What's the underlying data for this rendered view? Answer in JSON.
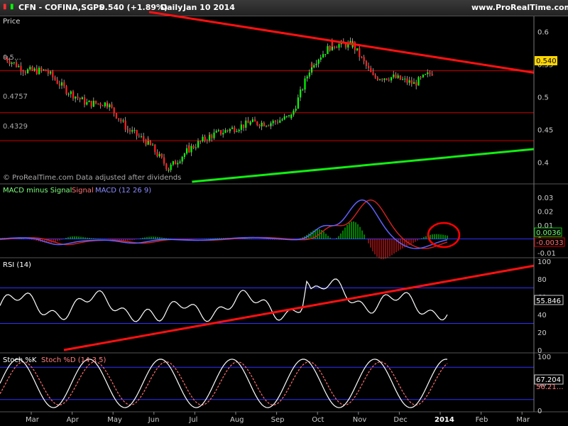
{
  "header": {
    "symbol": "CFN - COFINA,SGPS",
    "price": "0.540 (+1.89%)",
    "period": "Daily",
    "date": "Jan 10 2014",
    "site": "www.ProRealTime.com"
  },
  "panels": {
    "price": {
      "title": "Price",
      "footnote": "© ProRealTime.com Data adjusted after dividends"
    },
    "macd": {
      "label1": "MACD minus Signal",
      "label2": "Signal",
      "label3": "MACD (12 26 9)"
    },
    "rsi": {
      "label": "RSI (14)"
    },
    "stoch": {
      "label1": "Stoch %K",
      "label2": "Stoch %D (14 3 5)"
    }
  },
  "colors": {
    "background": "#000000",
    "candle_up": "#00ff00",
    "candle_down": "#ff2020",
    "trend_red": "#ff1010",
    "trend_green": "#11ee11",
    "level_red": "#cc0000",
    "band_blue": "#3030ff",
    "price_tag": "#ffd700"
  },
  "chart_data": [
    {
      "type": "line",
      "name": "price",
      "title": "Price",
      "ylim": [
        0.37,
        0.62
      ],
      "yticks": [
        0.4,
        0.45,
        0.5,
        0.55,
        0.6
      ],
      "ytick_labels": [
        "0.4",
        "0.45",
        "0.5",
        "0.55",
        "0.6"
      ],
      "last_value": "0.540",
      "level_labels": [
        "0.5…",
        "0.4757",
        "0.4329"
      ],
      "levels": [
        0.54,
        0.4757,
        0.4329
      ],
      "trendlines": [
        {
          "color": "red",
          "from": [
            "Jun",
            0.63
          ],
          "to": [
            "Mar",
            0.537
          ]
        },
        {
          "color": "green",
          "from": [
            "Jul",
            0.37
          ],
          "to": [
            "Mar",
            0.42
          ]
        }
      ],
      "x_months": [
        "Mar",
        "Apr",
        "May",
        "Jun",
        "Jul",
        "Aug",
        "Sep",
        "Oct",
        "Nov",
        "Dec",
        "2014",
        "Feb",
        "Mar"
      ],
      "anchors": [
        [
          "Mar",
          0.56
        ],
        [
          "Mar",
          0.54
        ],
        [
          "Apr",
          0.54
        ],
        [
          "Apr",
          0.51
        ],
        [
          "May",
          0.49
        ],
        [
          "May",
          0.49
        ],
        [
          "Jun",
          0.45
        ],
        [
          "Jun",
          0.43
        ],
        [
          "Jul",
          0.39
        ],
        [
          "Jul",
          0.42
        ],
        [
          "Aug",
          0.44
        ],
        [
          "Aug",
          0.45
        ],
        [
          "Sep",
          0.46
        ],
        [
          "Sep",
          0.46
        ],
        [
          "Oct",
          0.47
        ],
        [
          "Oct",
          0.55
        ],
        [
          "Nov",
          0.58
        ],
        [
          "Nov",
          0.58
        ],
        [
          "Dec",
          0.53
        ],
        [
          "Dec",
          0.53
        ],
        [
          "2014",
          0.52
        ],
        [
          "2014",
          0.54
        ]
      ]
    },
    {
      "type": "line",
      "name": "macd",
      "ylim": [
        -0.012,
        0.036
      ],
      "yticks": [
        -0.01,
        0,
        0.01,
        0.02,
        0.03
      ],
      "ytick_labels": [
        "-0.01",
        "0",
        "0.01",
        "0.02",
        "0.03"
      ],
      "last_values": [
        "0.0036",
        "-0.0033"
      ],
      "peak": {
        "x": "Nov",
        "value": 0.027
      }
    },
    {
      "type": "line",
      "name": "rsi",
      "ylim": [
        0,
        100
      ],
      "yticks": [
        0,
        20,
        40,
        60,
        80,
        100
      ],
      "ytick_labels": [
        "0",
        "20",
        "40",
        "60",
        "80",
        "100"
      ],
      "bands": [
        30,
        70
      ],
      "last_value": "55.846"
    },
    {
      "type": "line",
      "name": "stochastic",
      "ylim": [
        0,
        100
      ],
      "yticks": [
        0,
        50,
        100
      ],
      "ytick_labels": [
        "0",
        "50",
        "100"
      ],
      "bands": [
        20,
        80
      ],
      "last_values": [
        "67.204",
        "56.21…"
      ]
    }
  ]
}
